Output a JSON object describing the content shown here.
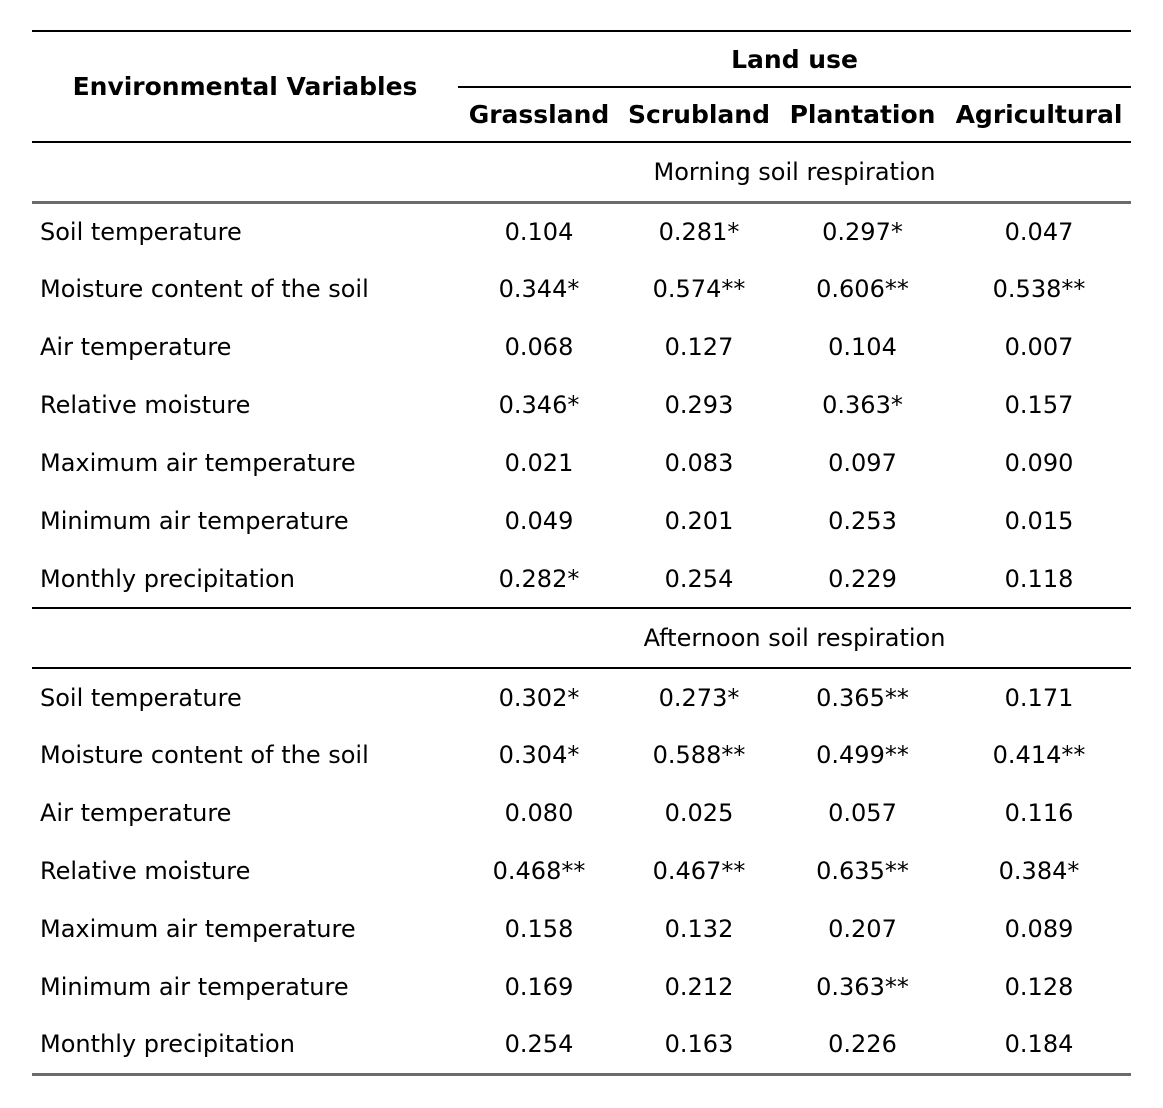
{
  "table": {
    "col1_header": "Environmental Variables",
    "group_header": "Land use",
    "columns": [
      "Grassland",
      "Scrubland",
      "Plantation",
      "Agricultural"
    ],
    "sections": [
      {
        "title": "Morning soil respiration",
        "rows": [
          {
            "variable": "Soil temperature",
            "values": [
              "0.104",
              "0.281*",
              "0.297*",
              "0.047"
            ]
          },
          {
            "variable": "Moisture content of the soil",
            "values": [
              "0.344*",
              "0.574**",
              "0.606**",
              "0.538**"
            ]
          },
          {
            "variable": "Air temperature",
            "values": [
              "0.068",
              "0.127",
              "0.104",
              "0.007"
            ]
          },
          {
            "variable": "Relative moisture",
            "values": [
              "0.346*",
              "0.293",
              "0.363*",
              "0.157"
            ]
          },
          {
            "variable": "Maximum air temperature",
            "values": [
              "0.021",
              "0.083",
              "0.097",
              "0.090"
            ]
          },
          {
            "variable": "Minimum air temperature",
            "values": [
              "0.049",
              "0.201",
              "0.253",
              "0.015"
            ]
          },
          {
            "variable": "Monthly precipitation",
            "values": [
              "0.282*",
              "0.254",
              "0.229",
              "0.118"
            ]
          }
        ]
      },
      {
        "title": "Afternoon soil respiration",
        "rows": [
          {
            "variable": "Soil temperature",
            "values": [
              "0.302*",
              "0.273*",
              "0.365**",
              "0.171"
            ]
          },
          {
            "variable": "Moisture content of the soil",
            "values": [
              "0.304*",
              "0.588**",
              "0.499**",
              "0.414**"
            ]
          },
          {
            "variable": "Air temperature",
            "values": [
              "0.080",
              "0.025",
              "0.057",
              "0.116"
            ]
          },
          {
            "variable": "Relative moisture",
            "values": [
              "0.468**",
              "0.467**",
              "0.635**",
              "0.384*"
            ]
          },
          {
            "variable": "Maximum air temperature",
            "values": [
              "0.158",
              "0.132",
              "0.207",
              "0.089"
            ]
          },
          {
            "variable": "Minimum air temperature",
            "values": [
              "0.169",
              "0.212",
              "0.363**",
              "0.128"
            ]
          },
          {
            "variable": "Monthly precipitation",
            "values": [
              "0.254",
              "0.163",
              "0.226",
              "0.184"
            ]
          }
        ]
      }
    ]
  }
}
